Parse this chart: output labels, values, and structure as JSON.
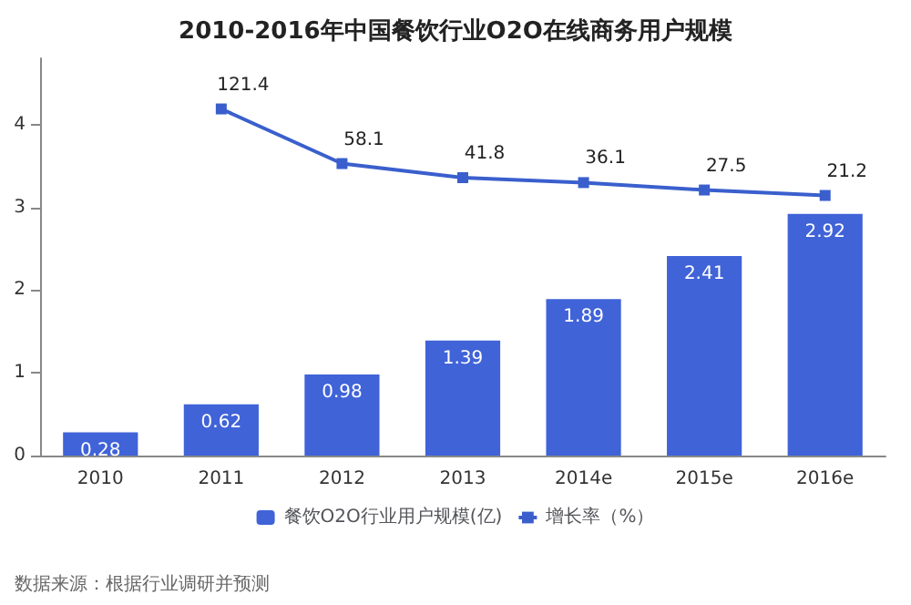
{
  "chart_data": {
    "type": "bar",
    "title": "2010-2016年中国餐饮行业O2O在线商务用户规模",
    "categories": [
      "2010",
      "2011",
      "2012",
      "2013",
      "2014e",
      "2015e",
      "2016e"
    ],
    "series": [
      {
        "name": "餐饮O2O行业用户规模(亿)",
        "color": "#4063d8",
        "values": [
          0.28,
          0.62,
          0.98,
          1.39,
          1.89,
          2.41,
          2.92
        ]
      },
      {
        "name": "增长率（%）",
        "type": "line",
        "axis": "y2",
        "color": "#3a5fcd",
        "values": [
          null,
          121.4,
          58.1,
          41.8,
          36.1,
          27.5,
          21.2
        ]
      }
    ],
    "ylim": [
      0,
      4.8
    ],
    "yticks": [
      0,
      1,
      2,
      3,
      4
    ],
    "y2lim": [
      -280,
      180
    ],
    "grid": false,
    "legend": "bottom",
    "data_labels": true,
    "marker": "square",
    "annotations": [
      "数据来源：根据行业调研并预测"
    ]
  }
}
